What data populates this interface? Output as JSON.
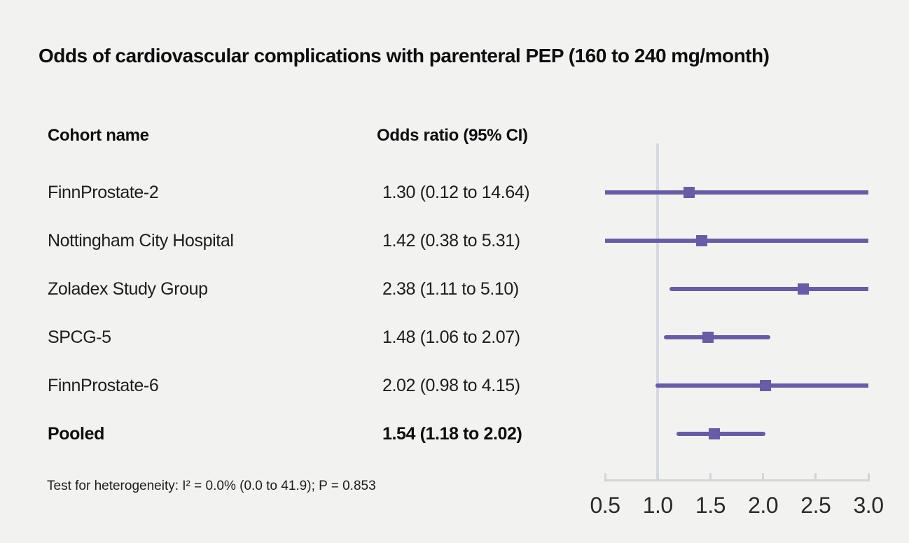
{
  "title": "Odds of cardiovascular complications with parenteral PEP (160 to 240 mg/month)",
  "table": {
    "cohort_header": "Cohort name",
    "or_header": "Odds ratio (95% CI)"
  },
  "footer": "Test for heterogeneity: I² = 0.0% (0.0 to 41.9); P = 0.853",
  "colors": {
    "background": "#f2f2f1",
    "marker_purple": "#695ba7",
    "reference_line": "#d5d9e2",
    "axis": "#d2d5da",
    "axis_label_text": "#2a2a2a",
    "text": "#1d1d1d"
  },
  "chart_data": {
    "type": "scatter",
    "subtype": "forest-plot",
    "title": "Odds of cardiovascular complications with parenteral PEP (160 to 240 mg/month)",
    "xlabel": "",
    "ylabel": "",
    "xlim": [
      0.5,
      3.0
    ],
    "x_ticks": [
      0.5,
      1.0,
      1.5,
      2.0,
      2.5,
      3.0
    ],
    "x_tick_labels": [
      "0.5",
      "1.0",
      "1.5",
      "2.0",
      "2.5",
      "3.0"
    ],
    "reference_line_x": 1.0,
    "grid": false,
    "legend": "none",
    "rows": [
      {
        "cohort": "FinnProstate-2",
        "or_text": "1.30 (0.12 to 14.64)",
        "estimate": 1.3,
        "ci_low": 0.12,
        "ci_high": 14.64,
        "bold": false
      },
      {
        "cohort": "Nottingham City Hospital",
        "or_text": "1.42 (0.38 to 5.31)",
        "estimate": 1.42,
        "ci_low": 0.38,
        "ci_high": 5.31,
        "bold": false
      },
      {
        "cohort": "Zoladex Study Group",
        "or_text": "2.38 (1.11 to 5.10)",
        "estimate": 2.38,
        "ci_low": 1.11,
        "ci_high": 5.1,
        "bold": false
      },
      {
        "cohort": "SPCG-5",
        "or_text": "1.48 (1.06 to 2.07)",
        "estimate": 1.48,
        "ci_low": 1.06,
        "ci_high": 2.07,
        "bold": false
      },
      {
        "cohort": "FinnProstate-6",
        "or_text": "2.02 (0.98 to 4.15)",
        "estimate": 2.02,
        "ci_low": 0.98,
        "ci_high": 4.15,
        "bold": false
      },
      {
        "cohort": "Pooled",
        "or_text": "1.54 (1.18 to 2.02)",
        "estimate": 1.54,
        "ci_low": 1.18,
        "ci_high": 2.02,
        "bold": true
      }
    ]
  }
}
